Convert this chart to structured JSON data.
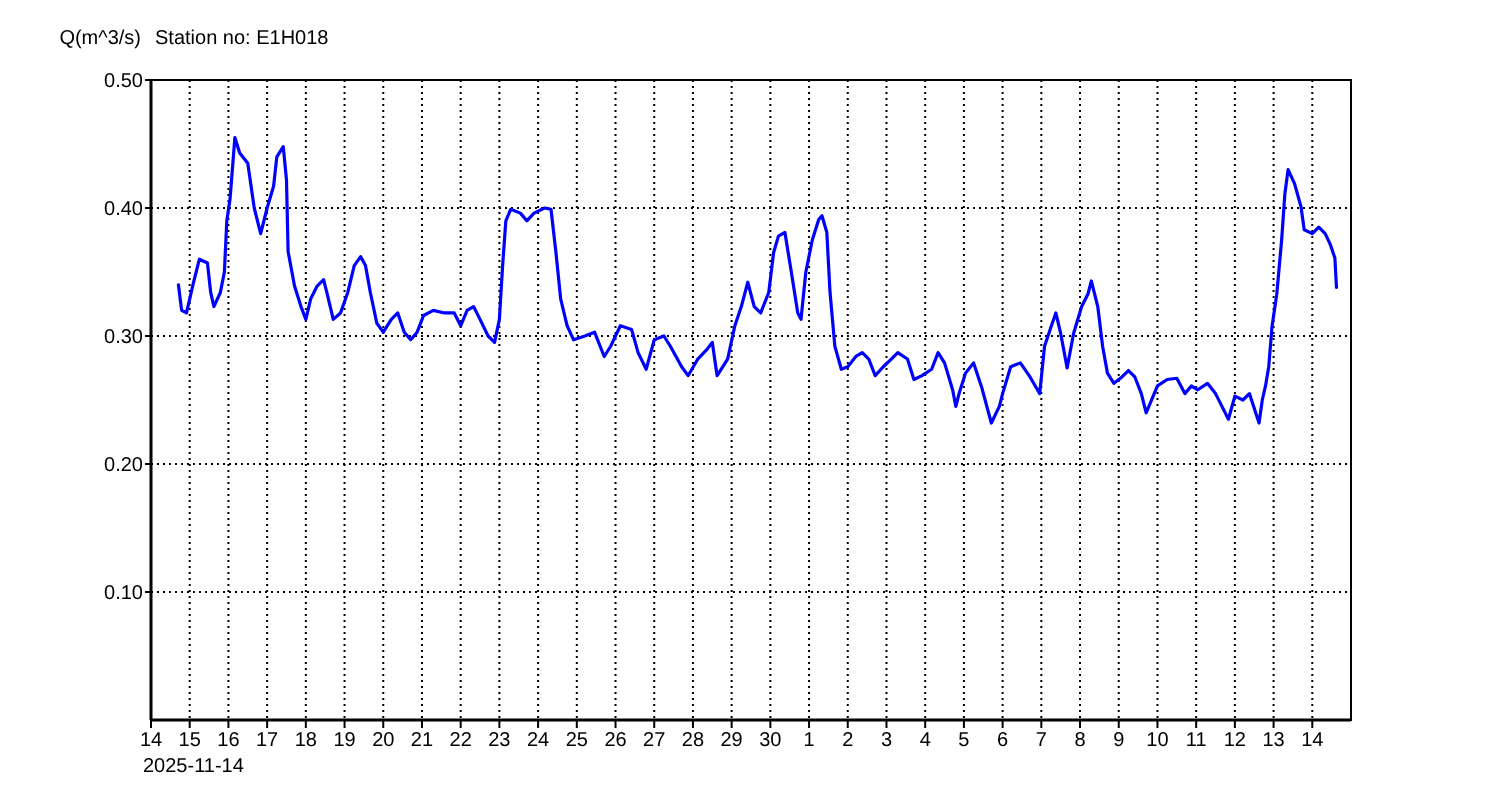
{
  "chart_data": {
    "type": "line",
    "title": "Station no: E1H018",
    "ylabel": "Q(m^3/s)",
    "xlabel": "2025-11-14",
    "xlim": [
      "2025-11-14",
      "2025-12-15"
    ],
    "xticks": [
      {
        "value": "2025-11-14",
        "label": "14"
      },
      {
        "value": "2025-11-15",
        "label": "15"
      },
      {
        "value": "2025-11-16",
        "label": "16"
      },
      {
        "value": "2025-11-17",
        "label": "17"
      },
      {
        "value": "2025-11-18",
        "label": "18"
      },
      {
        "value": "2025-11-19",
        "label": "19"
      },
      {
        "value": "2025-11-20",
        "label": "20"
      },
      {
        "value": "2025-11-21",
        "label": "21"
      },
      {
        "value": "2025-11-22",
        "label": "22"
      },
      {
        "value": "2025-11-23",
        "label": "23"
      },
      {
        "value": "2025-11-24",
        "label": "24"
      },
      {
        "value": "2025-11-25",
        "label": "25"
      },
      {
        "value": "2025-11-26",
        "label": "26"
      },
      {
        "value": "2025-11-27",
        "label": "27"
      },
      {
        "value": "2025-11-28",
        "label": "28"
      },
      {
        "value": "2025-11-29",
        "label": "29"
      },
      {
        "value": "2025-11-30",
        "label": "30"
      },
      {
        "value": "2025-12-01",
        "label": "1"
      },
      {
        "value": "2025-12-02",
        "label": "2"
      },
      {
        "value": "2025-12-03",
        "label": "3"
      },
      {
        "value": "2025-12-04",
        "label": "4"
      },
      {
        "value": "2025-12-05",
        "label": "5"
      },
      {
        "value": "2025-12-06",
        "label": "6"
      },
      {
        "value": "2025-12-07",
        "label": "7"
      },
      {
        "value": "2025-12-08",
        "label": "8"
      },
      {
        "value": "2025-12-09",
        "label": "9"
      },
      {
        "value": "2025-12-10",
        "label": "10"
      },
      {
        "value": "2025-12-11",
        "label": "11"
      },
      {
        "value": "2025-12-12",
        "label": "12"
      },
      {
        "value": "2025-12-13",
        "label": "13"
      },
      {
        "value": "2025-12-14",
        "label": "14"
      }
    ],
    "ylim": [
      0,
      0.5
    ],
    "yticks": [
      {
        "value": 0.1,
        "label": "0.10"
      },
      {
        "value": 0.2,
        "label": "0.20"
      },
      {
        "value": 0.3,
        "label": "0.30"
      },
      {
        "value": 0.4,
        "label": "0.40"
      },
      {
        "value": 0.5,
        "label": "0.50"
      }
    ],
    "grid": true,
    "x": [
      "2025-11-14T17:00",
      "2025-11-14T19:00",
      "2025-11-14T22:00",
      "2025-11-15T02:00",
      "2025-11-15T06:00",
      "2025-11-15T11:00",
      "2025-11-15T13:00",
      "2025-11-15T15:00",
      "2025-11-15T19:00",
      "2025-11-15T21:30",
      "2025-11-15T23:00",
      "2025-11-16T01:00",
      "2025-11-16T04:00",
      "2025-11-16T07:00",
      "2025-11-16T12:00",
      "2025-11-16T16:00",
      "2025-11-16T20:00",
      "2025-11-17T00:00",
      "2025-11-17T04:00",
      "2025-11-17T06:00",
      "2025-11-17T10:00",
      "2025-11-17T12:00",
      "2025-11-17T13:00",
      "2025-11-17T17:00",
      "2025-11-17T21:00",
      "2025-11-18T00:00",
      "2025-11-18T03:00",
      "2025-11-18T07:00",
      "2025-11-18T11:00",
      "2025-11-18T13:00",
      "2025-11-18T17:00",
      "2025-11-18T21:30",
      "2025-11-19T02:00",
      "2025-11-19T06:00",
      "2025-11-19T10:00",
      "2025-11-19T13:00",
      "2025-11-19T16:00",
      "2025-11-19T20:00",
      "2025-11-20T00:00",
      "2025-11-20T05:00",
      "2025-11-20T09:00",
      "2025-11-20T13:00",
      "2025-11-20T17:00",
      "2025-11-20T21:00",
      "2025-11-21T01:00",
      "2025-11-21T07:00",
      "2025-11-21T14:00",
      "2025-11-21T20:00",
      "2025-11-22T00:00",
      "2025-11-22T04:00",
      "2025-11-22T08:00",
      "2025-11-22T12:00",
      "2025-11-22T17:00",
      "2025-11-22T21:00",
      "2025-11-23T00:00",
      "2025-11-23T02:00",
      "2025-11-23T04:00",
      "2025-11-23T07:00",
      "2025-11-23T13:00",
      "2025-11-23T17:00",
      "2025-11-23T21:30",
      "2025-11-24T04:00",
      "2025-11-24T08:00",
      "2025-11-24T11:00",
      "2025-11-24T14:00",
      "2025-11-24T18:00",
      "2025-11-24T22:00",
      "2025-11-25T05:00",
      "2025-11-25T11:00",
      "2025-11-25T17:00",
      "2025-11-25T21:00",
      "2025-11-26T03:00",
      "2025-11-26T10:00",
      "2025-11-26T14:00",
      "2025-11-26T19:00",
      "2025-11-27T00:00",
      "2025-11-27T06:00",
      "2025-11-27T10:00",
      "2025-11-27T17:00",
      "2025-11-27T21:00",
      "2025-11-28T03:00",
      "2025-11-28T09:00",
      "2025-11-28T12:00",
      "2025-11-28T15:00",
      "2025-11-28T21:30",
      "2025-11-29T02:00",
      "2025-11-29T06:00",
      "2025-11-29T10:00",
      "2025-11-29T14:00",
      "2025-11-29T18:00",
      "2025-11-29T23:00",
      "2025-11-30T02:00",
      "2025-11-30T05:00",
      "2025-11-30T09:00",
      "2025-11-30T13:00",
      "2025-11-30T17:00",
      "2025-11-30T19:00",
      "2025-11-30T22:00",
      "2025-12-01T02:00",
      "2025-12-01T06:00",
      "2025-12-01T08:00",
      "2025-12-01T11:00",
      "2025-12-01T13:00",
      "2025-12-01T16:00",
      "2025-12-01T20:00",
      "2025-12-02T00:00",
      "2025-12-02T05:00",
      "2025-12-02T09:00",
      "2025-12-02T13:00",
      "2025-12-02T17:00",
      "2025-12-02T22:00",
      "2025-12-03T03:00",
      "2025-12-03T07:00",
      "2025-12-03T13:00",
      "2025-12-03T17:00",
      "2025-12-03T22:00",
      "2025-12-04T04:00",
      "2025-12-04T08:00",
      "2025-12-04T12:00",
      "2025-12-04T17:00",
      "2025-12-04T19:00",
      "2025-12-04T21:00",
      "2025-12-05T01:00",
      "2025-12-05T06:00",
      "2025-12-05T11:00",
      "2025-12-05T17:00",
      "2025-12-05T22:00",
      "2025-12-06T00:00",
      "2025-12-06T05:00",
      "2025-12-06T11:00",
      "2025-12-06T17:00",
      "2025-12-06T23:00",
      "2025-12-07T02:00",
      "2025-12-07T06:00",
      "2025-12-07T09:00",
      "2025-12-07T12:00",
      "2025-12-07T16:00",
      "2025-12-07T20:00",
      "2025-12-08T01:00",
      "2025-12-08T05:00",
      "2025-12-08T07:00",
      "2025-12-08T11:00",
      "2025-12-08T14:00",
      "2025-12-08T17:00",
      "2025-12-08T21:00",
      "2025-12-09T02:00",
      "2025-12-09T06:00",
      "2025-12-09T10:00",
      "2025-12-09T14:00",
      "2025-12-09T17:00",
      "2025-12-10T00:00",
      "2025-12-10T06:00",
      "2025-12-10T12:00",
      "2025-12-10T17:00",
      "2025-12-10T21:00",
      "2025-12-11T01:00",
      "2025-12-11T07:00",
      "2025-12-11T12:00",
      "2025-12-11T16:00",
      "2025-12-11T20:00",
      "2025-12-12T00:00",
      "2025-12-12T05:00",
      "2025-12-12T09:00",
      "2025-12-12T15:00",
      "2025-12-12T17:00",
      "2025-12-12T19:00",
      "2025-12-12T21:00",
      "2025-12-12T23:00",
      "2025-12-13T02:00",
      "2025-12-13T05:00",
      "2025-12-13T07:00",
      "2025-12-13T09:00",
      "2025-12-13T13:00",
      "2025-12-13T17:00",
      "2025-12-13T19:00",
      "2025-12-14T00:00",
      "2025-12-14T04:00",
      "2025-12-14T08:00",
      "2025-12-14T11:00",
      "2025-12-14T14:00",
      "2025-12-14T15:00"
    ],
    "series": [
      {
        "color": "#0000ff",
        "values": [
          0.34,
          0.32,
          0.318,
          0.34,
          0.36,
          0.357,
          0.334,
          0.323,
          0.334,
          0.35,
          0.39,
          0.407,
          0.455,
          0.443,
          0.435,
          0.4,
          0.38,
          0.4,
          0.417,
          0.44,
          0.448,
          0.422,
          0.366,
          0.339,
          0.323,
          0.313,
          0.329,
          0.339,
          0.344,
          0.334,
          0.313,
          0.318,
          0.334,
          0.355,
          0.362,
          0.355,
          0.334,
          0.31,
          0.303,
          0.313,
          0.318,
          0.303,
          0.297,
          0.303,
          0.316,
          0.32,
          0.318,
          0.318,
          0.308,
          0.32,
          0.323,
          0.313,
          0.3,
          0.295,
          0.313,
          0.355,
          0.39,
          0.399,
          0.396,
          0.39,
          0.396,
          0.4,
          0.399,
          0.366,
          0.329,
          0.308,
          0.297,
          0.3,
          0.303,
          0.284,
          0.292,
          0.308,
          0.305,
          0.287,
          0.274,
          0.297,
          0.3,
          0.292,
          0.276,
          0.269,
          0.282,
          0.29,
          0.295,
          0.269,
          0.282,
          0.308,
          0.323,
          0.342,
          0.323,
          0.318,
          0.334,
          0.365,
          0.378,
          0.381,
          0.35,
          0.318,
          0.313,
          0.35,
          0.375,
          0.391,
          0.394,
          0.381,
          0.334,
          0.292,
          0.274,
          0.276,
          0.284,
          0.287,
          0.282,
          0.269,
          0.276,
          0.282,
          0.287,
          0.282,
          0.266,
          0.269,
          0.274,
          0.287,
          0.279,
          0.258,
          0.245,
          0.255,
          0.271,
          0.279,
          0.26,
          0.232,
          0.245,
          0.255,
          0.276,
          0.279,
          0.268,
          0.255,
          0.292,
          0.307,
          0.318,
          0.302,
          0.275,
          0.302,
          0.323,
          0.333,
          0.343,
          0.323,
          0.292,
          0.271,
          0.263,
          0.268,
          0.273,
          0.268,
          0.255,
          0.24,
          0.261,
          0.266,
          0.267,
          0.255,
          0.261,
          0.258,
          0.263,
          0.255,
          0.245,
          0.235,
          0.253,
          0.25,
          0.255,
          0.232,
          0.25,
          0.261,
          0.276,
          0.307,
          0.333,
          0.375,
          0.411,
          0.43,
          0.419,
          0.401,
          0.383,
          0.38,
          0.385,
          0.38,
          0.372,
          0.361,
          0.338
        ]
      }
    ]
  }
}
